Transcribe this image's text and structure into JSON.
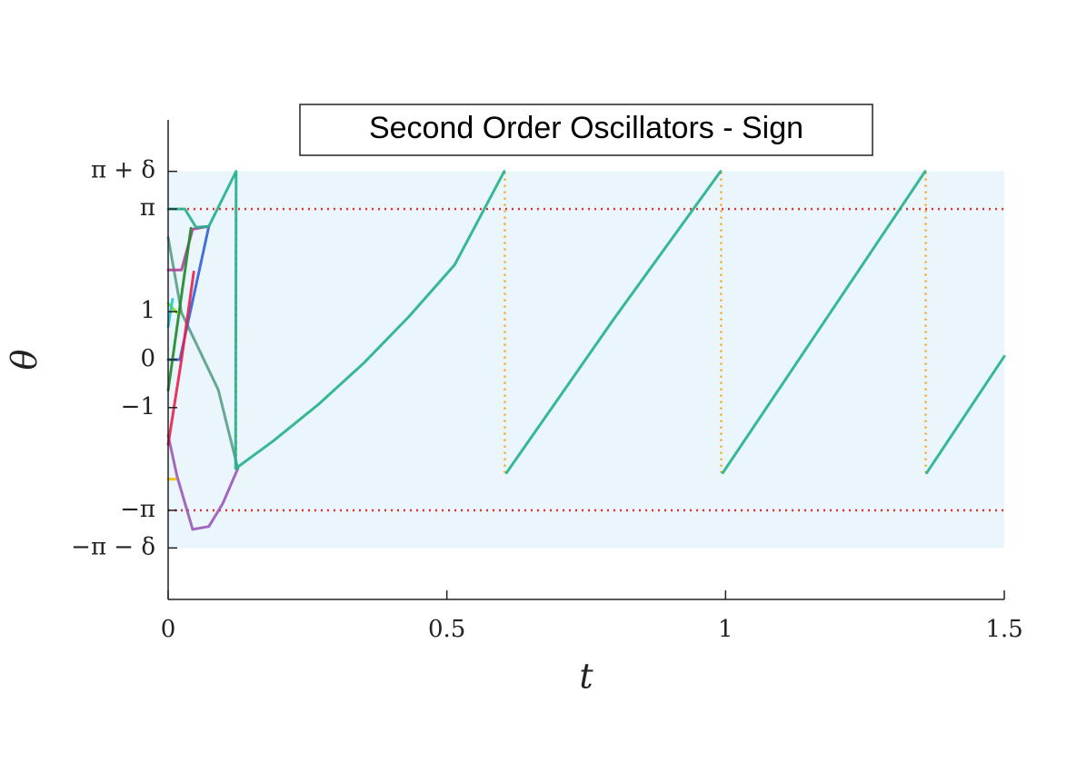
{
  "chart_data": {
    "type": "line",
    "title": "Second Order Oscillators - Sign",
    "xlabel": "t",
    "ylabel": "θ",
    "xlim": [
      0,
      1.5
    ],
    "xticks": [
      0,
      0.5,
      1,
      1.5
    ],
    "ylim": [
      -5,
      5
    ],
    "yticks": [
      {
        "value": -3.927,
        "label": "−π − δ"
      },
      {
        "value": -3.1416,
        "label": "−π"
      },
      {
        "value": -1,
        "label": "−1"
      },
      0,
      1,
      {
        "value": 3.1416,
        "label": "π"
      },
      {
        "value": 3.927,
        "label": "π + δ"
      }
    ],
    "band": {
      "range": [
        -3.927,
        3.927
      ],
      "color": "#eaf6fc"
    },
    "hlines": {
      "values": [
        3.1416,
        -3.1416
      ],
      "color": "#e83030"
    },
    "vlines": {
      "color": "#f5a623",
      "lines": [
        {
          "x": 0.122,
          "range": [
            -2.27,
            3.927
          ]
        },
        {
          "x": 0.604,
          "range": [
            -2.36,
            3.927
          ]
        },
        {
          "x": 0.992,
          "range": [
            -2.36,
            3.927
          ]
        },
        {
          "x": 1.359,
          "range": [
            -2.36,
            3.927
          ]
        }
      ]
    },
    "series": [
      {
        "color": "#9b59b6",
        "x": [
          0,
          0.016,
          0.044,
          0.073,
          0.098,
          0.125
        ],
        "values": [
          -1.58,
          -2.43,
          -3.54,
          -3.48,
          -3.0,
          -2.27
        ]
      },
      {
        "color": "#5a9f86",
        "x": [
          0,
          0.024,
          0.09,
          0.125
        ],
        "values": [
          2.55,
          0.98,
          -0.63,
          -2.27
        ]
      },
      {
        "color": "#2f62d6",
        "x": [
          0,
          0.021,
          0.073
        ],
        "values": [
          0,
          0,
          2.78
        ]
      },
      {
        "color": "#b0409a",
        "x": [
          0,
          0.024,
          0.044,
          0.073
        ],
        "values": [
          1.87,
          1.87,
          2.72,
          2.78
        ]
      },
      {
        "color": "#1f8a2a",
        "x": [
          0,
          0.041
        ],
        "values": [
          -0.64,
          2.74
        ]
      },
      {
        "color": "#e8204a",
        "x": [
          0,
          0.024,
          0.046
        ],
        "values": [
          -1.77,
          0,
          1.83
        ]
      },
      {
        "color": "#7fe000",
        "x": [
          0,
          0.016
        ],
        "values": [
          1.17,
          0.98
        ]
      },
      {
        "color": "#20c8e0",
        "x": [
          0,
          0.008
        ],
        "values": [
          0.69,
          1.26
        ]
      },
      {
        "color": "#f0c000",
        "x": [
          0,
          0.013
        ],
        "values": [
          -2.49,
          -2.49
        ]
      },
      {
        "color": "#22b08c",
        "x": [
          0,
          0.03,
          0.05,
          0.073,
          0.122,
          0.121,
          0.188,
          0.269,
          0.351,
          0.432,
          0.514,
          0.603,
          0.605,
          0.607,
          0.799,
          0.991,
          0.993,
          0.995,
          1.358,
          1.36,
          1.361,
          1.5
        ],
        "values": [
          3.1416,
          3.1416,
          2.76,
          2.78,
          3.927,
          -2.27,
          -1.7,
          -0.94,
          -0.07,
          0.9,
          1.98,
          3.927,
          null,
          -2.36,
          0.84,
          3.927,
          null,
          -2.36,
          3.927,
          null,
          -2.36,
          0.07
        ]
      }
    ]
  }
}
